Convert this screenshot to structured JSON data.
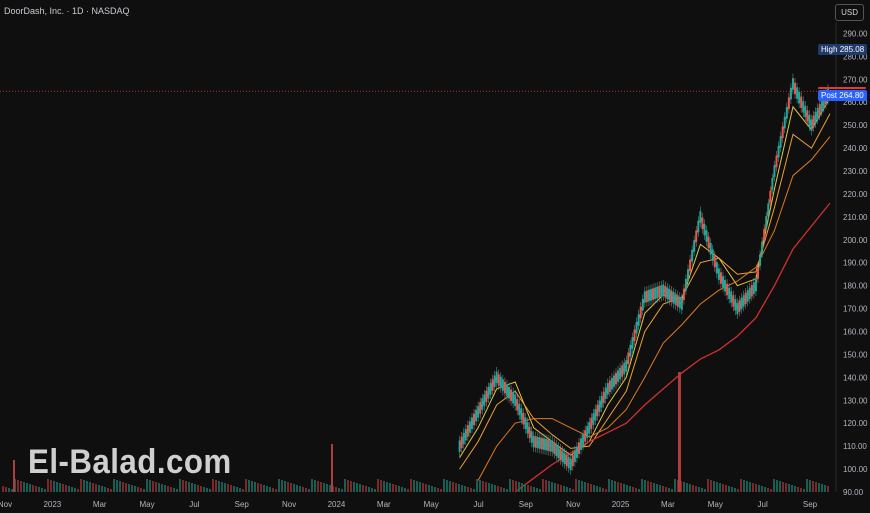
{
  "header": {
    "title": "DoorDash, Inc. · 1D · NASDAQ",
    "currency_label": "USD"
  },
  "watermark": "El-Balad.com",
  "markers": {
    "high_label": "High",
    "high_value": "285.08",
    "post_label": "Post",
    "post_value": "264.80"
  },
  "colors": {
    "background": "#0f0f0f",
    "up": "#26a69a",
    "down": "#ef5350",
    "ma_fast": "#e8c547",
    "ma_mid": "#f0a030",
    "ma_slow": "#e07a20",
    "ma_long": "#d32f2f"
  },
  "chart_data": {
    "type": "line",
    "title": "DoorDash, Inc. · 1D · NASDAQ",
    "ylim": [
      90,
      295
    ],
    "yticks": [
      "290.00",
      "280.00",
      "270.00",
      "260.00",
      "250.00",
      "240.00",
      "230.00",
      "220.00",
      "210.00",
      "200.00",
      "190.00",
      "180.00",
      "170.00",
      "160.00",
      "150.00",
      "140.00",
      "130.00",
      "120.00",
      "110.00",
      "100.00",
      "90.00"
    ],
    "xticks": [
      "Nov",
      "2023",
      "Mar",
      "May",
      "Jul",
      "Sep",
      "Nov",
      "2024",
      "Mar",
      "May",
      "Jul",
      "Sep",
      "Nov",
      "2025",
      "Mar",
      "May",
      "Jul",
      "Sep"
    ],
    "x": [
      "2022-11",
      "2023-01",
      "2023-03",
      "2023-05",
      "2023-07",
      "2023-09",
      "2023-11",
      "2024-01",
      "2024-02",
      "2024-03",
      "2024-04",
      "2024-05",
      "2024-06",
      "2024-07",
      "2024-08",
      "2024-09",
      "2024-10",
      "2024-11",
      "2024-12",
      "2025-01",
      "2025-02",
      "2025-03",
      "2025-04",
      "2025-05",
      "2025-06",
      "2025-07",
      "2025-08",
      "2025-09"
    ],
    "series": [
      {
        "values": [
          null,
          null,
          null,
          null,
          null,
          null,
          null,
          110,
          125,
          140,
          130,
          112,
          110,
          102,
          118,
          135,
          145,
          175,
          178,
          172,
          210,
          185,
          170,
          180,
          230,
          268,
          250,
          265
        ]
      },
      {
        "values": [
          null,
          null,
          null,
          null,
          null,
          null,
          null,
          105,
          118,
          135,
          138,
          118,
          112,
          106,
          112,
          128,
          140,
          168,
          176,
          174,
          198,
          192,
          180,
          183,
          222,
          258,
          248,
          262
        ]
      },
      {
        "values": [
          null,
          null,
          null,
          null,
          null,
          null,
          null,
          100,
          112,
          128,
          134,
          122,
          115,
          109,
          110,
          122,
          134,
          160,
          172,
          175,
          190,
          192,
          185,
          186,
          214,
          246,
          240,
          255
        ]
      },
      {
        "values": [
          null,
          null,
          null,
          null,
          null,
          null,
          null,
          null,
          95,
          110,
          120,
          122,
          122,
          118,
          114,
          118,
          126,
          140,
          155,
          163,
          172,
          178,
          182,
          188,
          204,
          228,
          235,
          245
        ]
      },
      {
        "values": [
          null,
          null,
          null,
          null,
          null,
          null,
          null,
          null,
          null,
          null,
          90,
          96,
          102,
          107,
          112,
          116,
          120,
          128,
          135,
          142,
          148,
          152,
          158,
          166,
          180,
          196,
          206,
          216
        ]
      }
    ],
    "current_price": 264.8
  }
}
